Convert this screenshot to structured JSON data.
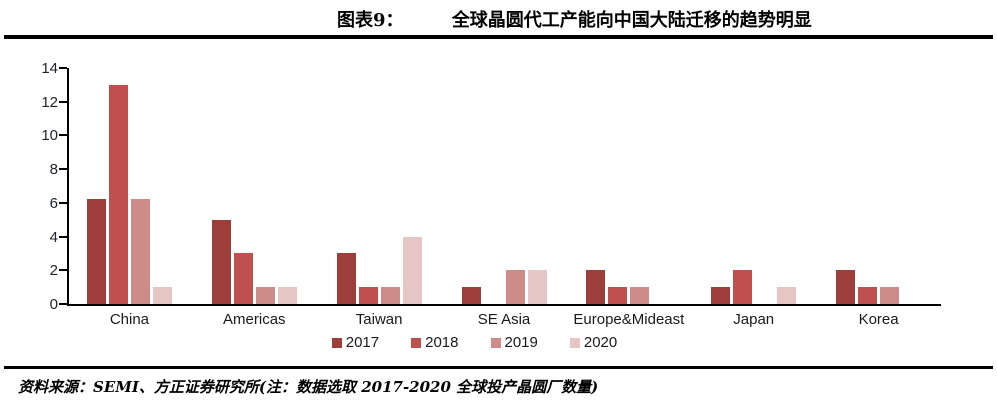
{
  "header": {
    "figure_label": "图表9：",
    "title": "全球晶圆代工产能向中国大陆迁移的趋势明显"
  },
  "footer": {
    "source": "资料来源：SEMI、方正证券研究所(注：数据选取 2017-2020 全球投产晶圆厂数量)"
  },
  "chart_data": {
    "type": "bar",
    "title": "全球晶圆代工产能向中国大陆迁移的趋势明显",
    "categories": [
      "China",
      "Americas",
      "Taiwan",
      "SE Asia",
      "Europe&Mideast",
      "Japan",
      "Korea"
    ],
    "series": [
      {
        "name": "2017",
        "color": "#9E3E3A",
        "values": [
          6.2,
          5,
          3,
          1,
          2,
          1,
          2
        ]
      },
      {
        "name": "2018",
        "color": "#C0504D",
        "values": [
          13,
          3,
          1,
          0,
          1,
          2,
          1
        ]
      },
      {
        "name": "2019",
        "color": "#CD8C89",
        "values": [
          6.2,
          1,
          1,
          2,
          1,
          0,
          1
        ]
      },
      {
        "name": "2020",
        "color": "#E5C6C5",
        "values": [
          1,
          1,
          4,
          2,
          0,
          1,
          0
        ]
      }
    ],
    "xlabel": "",
    "ylabel": "",
    "ylim": [
      0,
      14
    ],
    "yticks": [
      0,
      2,
      4,
      6,
      8,
      10,
      12,
      14
    ],
    "grid": false,
    "legend_position": "bottom",
    "axis_color": "#000000",
    "tick_label_color": "#20242c"
  }
}
